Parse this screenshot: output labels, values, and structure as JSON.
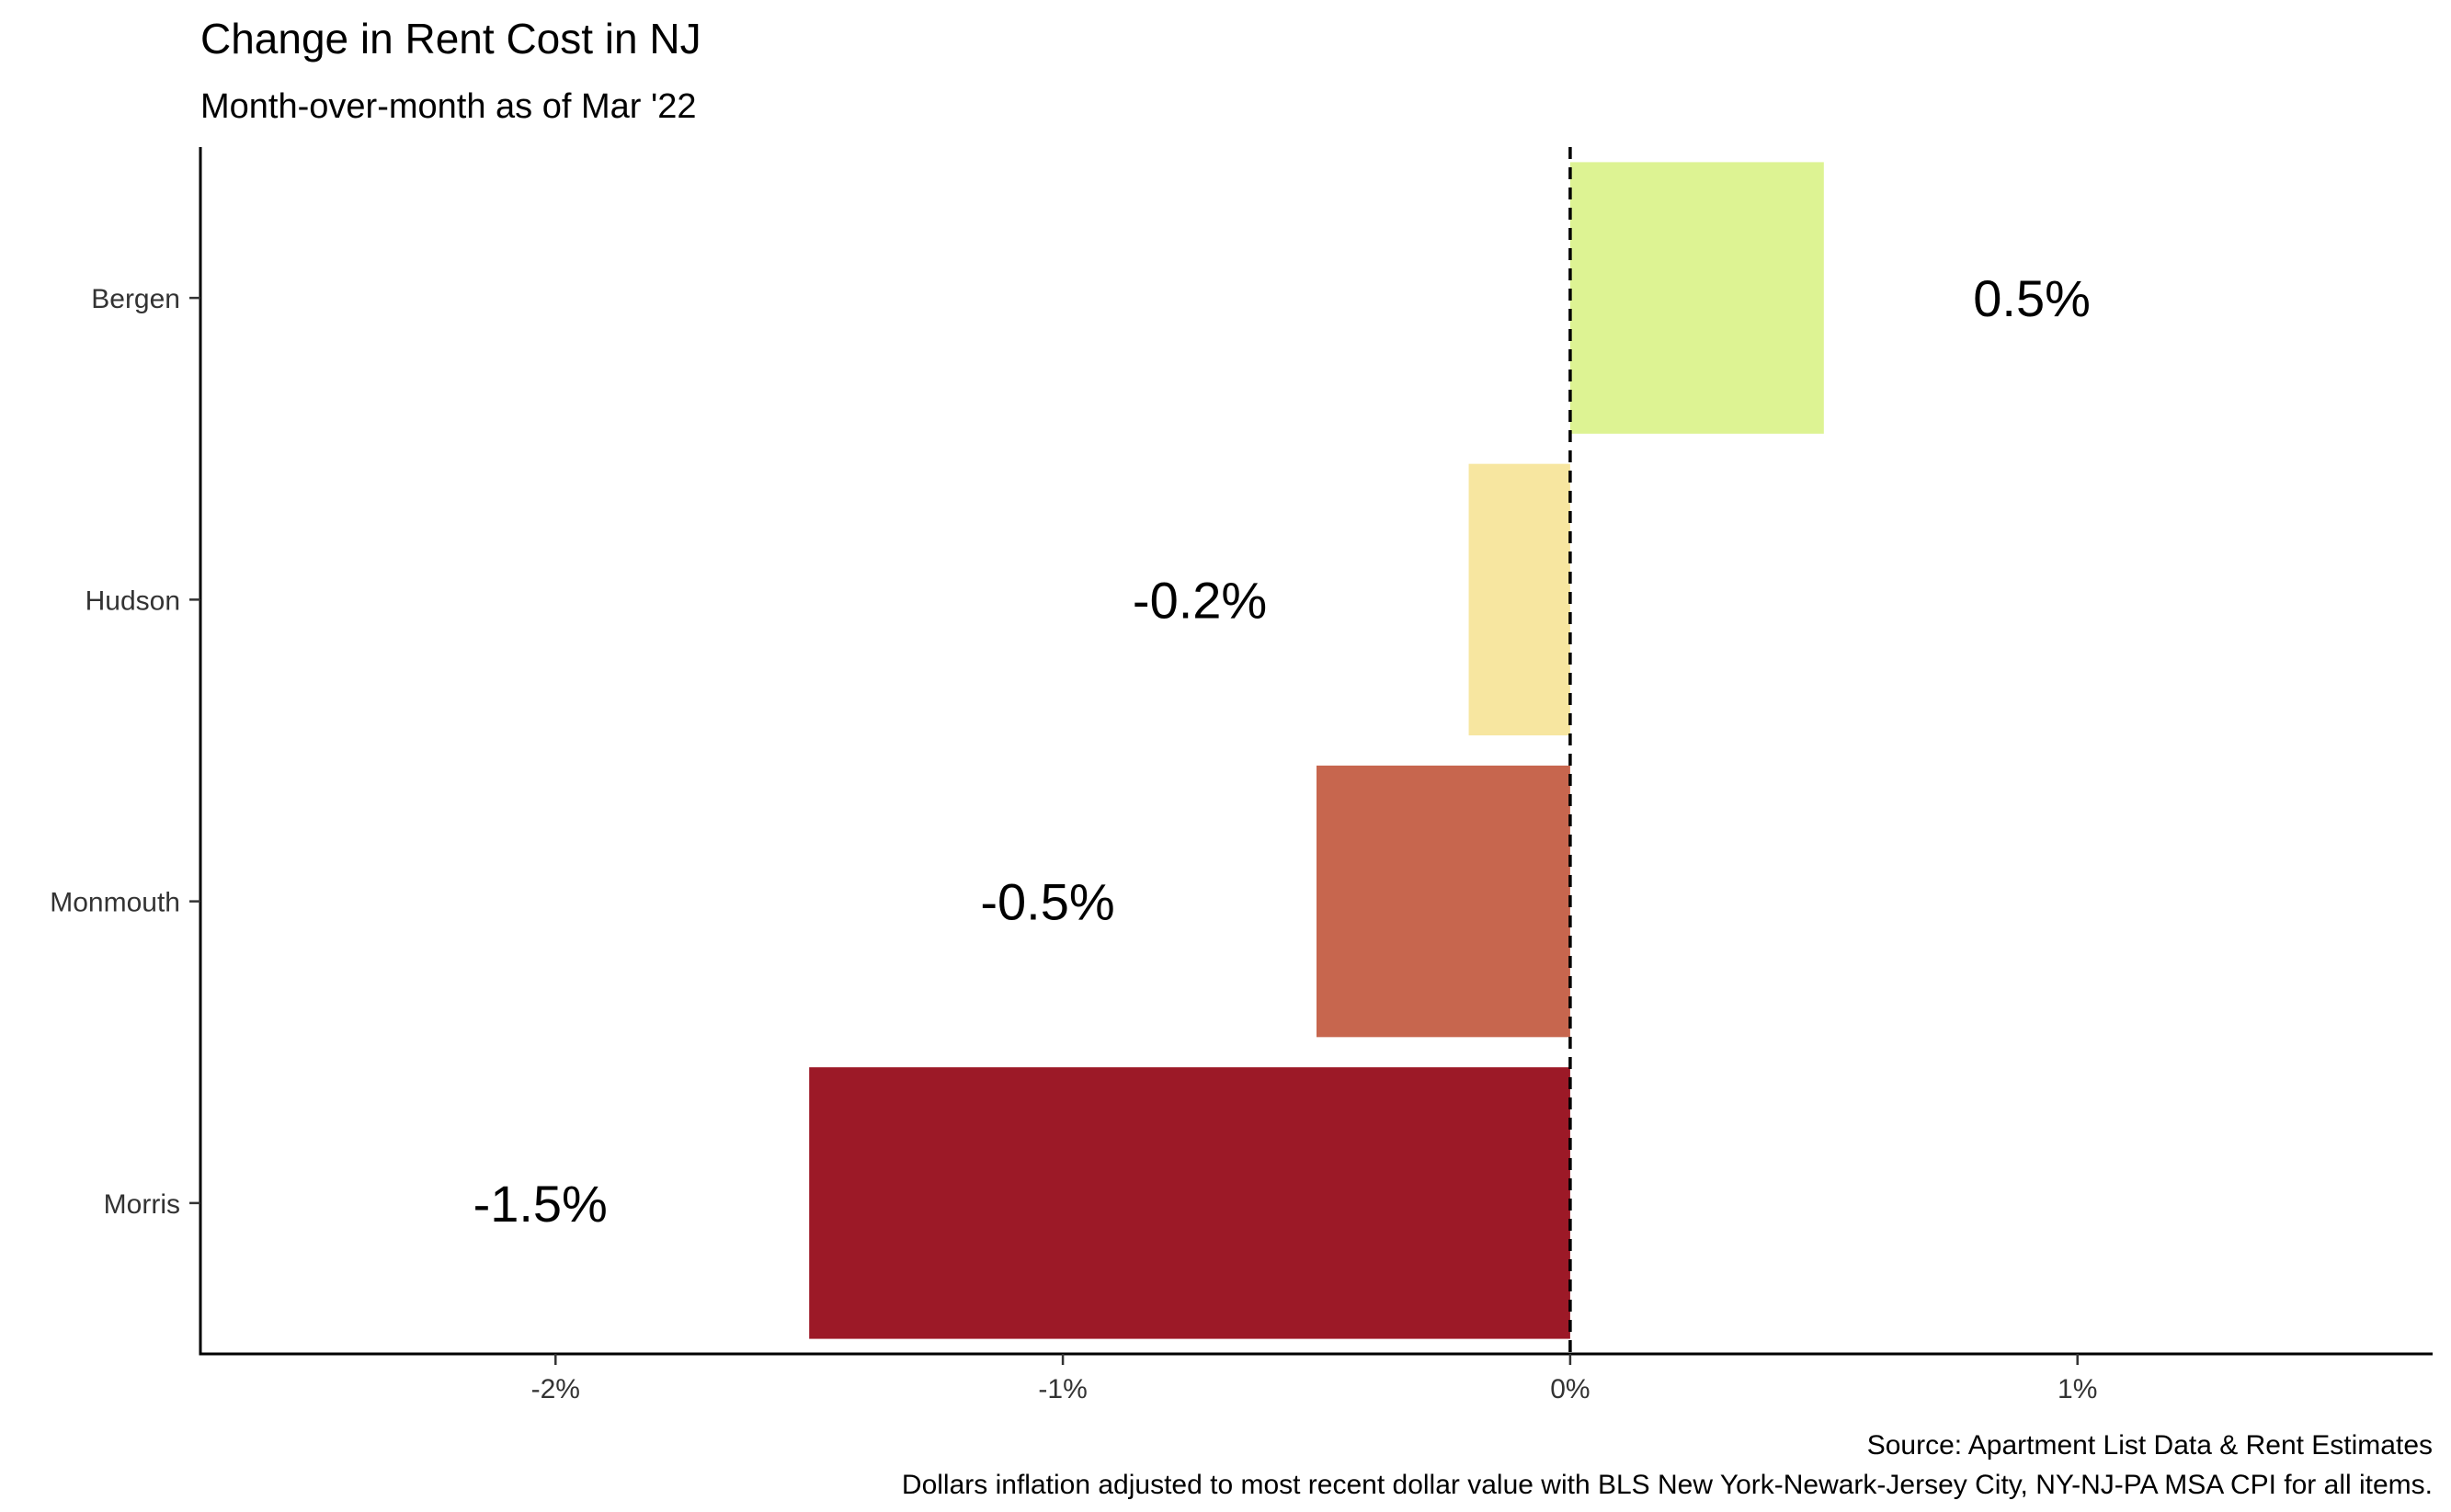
{
  "chart_data": {
    "type": "bar",
    "orientation": "horizontal",
    "title": "Change in Rent Cost in NJ",
    "subtitle": "Month-over-month as of Mar '22",
    "categories": [
      "Bergen",
      "Hudson",
      "Monmouth",
      "Morris"
    ],
    "values": [
      0.5,
      -0.2,
      -0.5,
      -1.5
    ],
    "value_labels": [
      "0.5%",
      "-0.2%",
      "-0.5%",
      "-1.5%"
    ],
    "bar_colors": [
      "#DDF393",
      "#F7E6A0",
      "#C7664E",
      "#9C1927"
    ],
    "x_ticks": [
      -2,
      -1,
      0,
      1
    ],
    "x_tick_labels": [
      "-2%",
      "-1%",
      "0%",
      "1%"
    ],
    "xlim": [
      -2.7,
      1.7
    ],
    "xlabel": "",
    "ylabel": "",
    "reference_line": 0,
    "grid": false,
    "legend": "none",
    "caption": [
      "Source: Apartment List Data & Rent Estimates",
      "Dollars inflation adjusted to most recent dollar value with BLS New York-Newark-Jersey City, NY-NJ-PA MSA CPI for all items."
    ]
  }
}
